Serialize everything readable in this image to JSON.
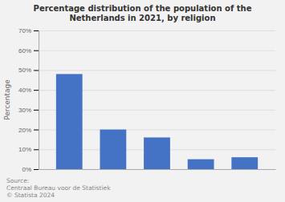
{
  "chart_data": {
    "type": "bar",
    "title": "Percentage distribution of the population of the Netherlands in 2021, by religion",
    "categories": [
      null,
      null,
      null,
      null,
      null
    ],
    "values": [
      48,
      20,
      16,
      5,
      6
    ],
    "color": "#4472C4",
    "ylabel": "Percentage",
    "ylim": [
      0,
      70
    ],
    "yticks": [
      {
        "value": 0,
        "label": "0%"
      },
      {
        "value": 10,
        "label": "10%"
      },
      {
        "value": 20,
        "label": "20%"
      },
      {
        "value": 30,
        "label": "30%"
      },
      {
        "value": 40,
        "label": "40%"
      },
      {
        "value": 50,
        "label": "50%"
      },
      {
        "value": 60,
        "label": "60%"
      },
      {
        "value": 70,
        "label": "70%"
      }
    ],
    "grid": true,
    "annotations": [
      "Source:",
      "Centraal Bureau voor de Statistiek",
      "© Statista 2024"
    ]
  }
}
